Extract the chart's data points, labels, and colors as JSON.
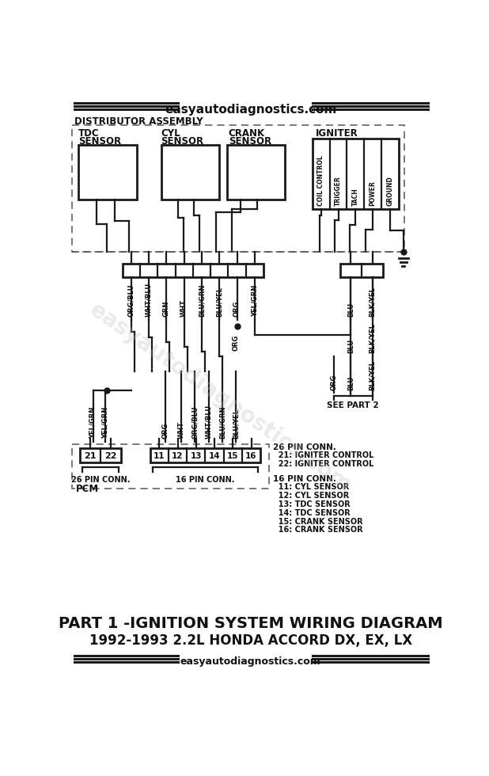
{
  "title_top": "easyautodiagnostics.com",
  "title_bottom1": "PART 1 -IGNITION SYSTEM WIRING DIAGRAM",
  "title_bottom2": "1992-1993 2.2L HONDA ACCORD DX, EX, LX",
  "title_bottom3": "easyautodiagnostics.com",
  "bg_color": "#ffffff",
  "line_color": "#1a1a1a",
  "watermark": "easyautodiagnostics.com",
  "igniter_labels": [
    "COIL CONTROL",
    "TRIGGER",
    "TACH",
    "POWER",
    "GROUND"
  ],
  "top_wire_labels": [
    "ORG/BLU",
    "WHT/BLU",
    "GRN",
    "WHT",
    "BLU/GRN",
    "BLU/YEL",
    "ORG",
    "YEL/GRN"
  ],
  "right_wire_labels_top": [
    "BLU",
    "BLK/YEL"
  ],
  "right_wire_labels_bot": [
    "ORG",
    "BLU",
    "BLK/YEL"
  ],
  "bottom_wire_labels_left": [
    "YEL/GRN",
    "YEL/GRN"
  ],
  "bottom_wire_labels_right": [
    "ORG",
    "WHT",
    "ORG/BLU",
    "WHT/BLU",
    "BLU/GRN",
    "BLU/YEL"
  ],
  "pin26_labels": [
    "21",
    "22"
  ],
  "pin16_labels": [
    "11",
    "12",
    "13",
    "14",
    "15",
    "16"
  ],
  "notes_26pin": [
    "26 PIN CONN.",
    "  21: IGNITER CONTROL",
    "  22: IGNITER CONTROL"
  ],
  "notes_16pin": [
    "16 PIN CONN.",
    "  11: CYL SENSOR",
    "  12: CYL SENSOR",
    "  13: TDC SENSOR",
    "  14: TDC SENSOR",
    "  15: CRANK SENSOR",
    "  16: CRANK SENSOR"
  ]
}
